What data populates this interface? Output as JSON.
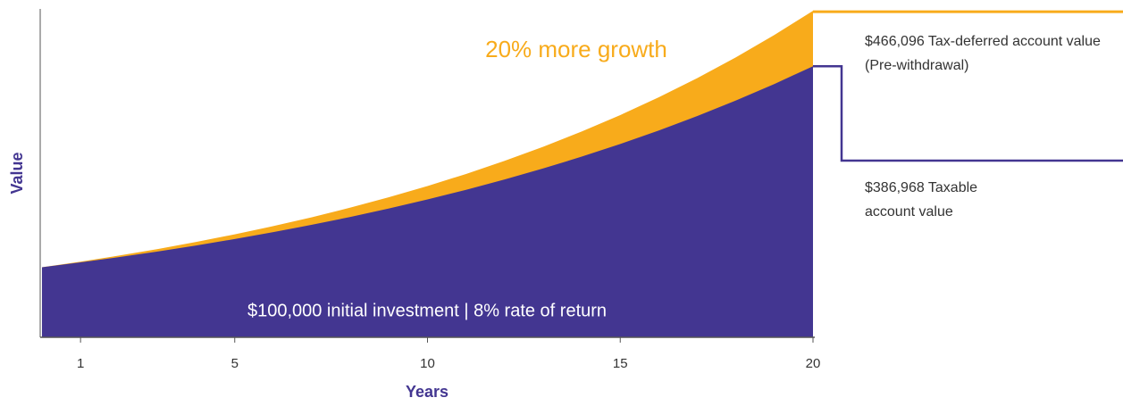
{
  "chart_data": {
    "type": "area",
    "ylabel": "Value",
    "xlabel": "Years",
    "annotations": [
      "20% more growth",
      "$100,000 initial investment  |  8% rate of return"
    ],
    "end_labels": [
      [
        "$466,096 Tax-deferred account value",
        "(Pre-withdrawal)"
      ],
      [
        "$386,968 Taxable",
        "account value"
      ]
    ],
    "x": [
      0,
      1,
      2,
      3,
      4,
      5,
      6,
      7,
      8,
      9,
      10,
      11,
      12,
      13,
      14,
      15,
      16,
      17,
      18,
      19,
      20
    ],
    "series": [
      {
        "color": "#f8ab1b",
        "values": [
          100000,
          108000,
          116640,
          125971,
          136049,
          146933,
          158687,
          171382,
          185093,
          199900,
          215892,
          233164,
          251817,
          271962,
          293719,
          317217,
          342594,
          370002,
          399602,
          431570,
          466096
        ]
      },
      {
        "color": "#433691",
        "values": [
          100000,
          107000,
          114490,
          122504,
          131080,
          140255,
          150073,
          160578,
          171819,
          183846,
          196715,
          210485,
          225219,
          240985,
          257853,
          275903,
          295216,
          315882,
          337993,
          361653,
          386968
        ]
      }
    ],
    "xlim": [
      0,
      20
    ],
    "xticks": [
      1,
      5,
      10,
      15,
      20
    ],
    "ylim": [
      0,
      470000
    ]
  }
}
